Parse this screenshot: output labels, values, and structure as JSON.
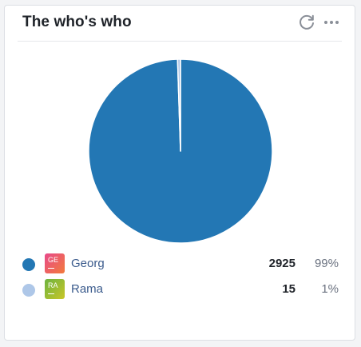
{
  "widget": {
    "title": "The who's who",
    "actions": {
      "refresh_icon": "refresh-icon",
      "more_icon": "more-horizontal-icon"
    }
  },
  "chart_data": {
    "type": "pie",
    "categories": [
      "Georg",
      "Rama"
    ],
    "values": [
      2925,
      15
    ],
    "colors": [
      "#2377b4",
      "#aec7e8"
    ]
  },
  "legend": {
    "items": [
      {
        "avatar_initials": "GE",
        "avatar_colors": [
          "#e84a8a",
          "#f27a3c"
        ],
        "name": "Georg",
        "count": "2925",
        "percent": "99%",
        "dot_color": "#2377b4"
      },
      {
        "avatar_initials": "RA",
        "avatar_colors": [
          "#6cb33f",
          "#c9c628"
        ],
        "name": "Rama",
        "count": "15",
        "percent": "1%",
        "dot_color": "#aec7e8"
      }
    ]
  }
}
